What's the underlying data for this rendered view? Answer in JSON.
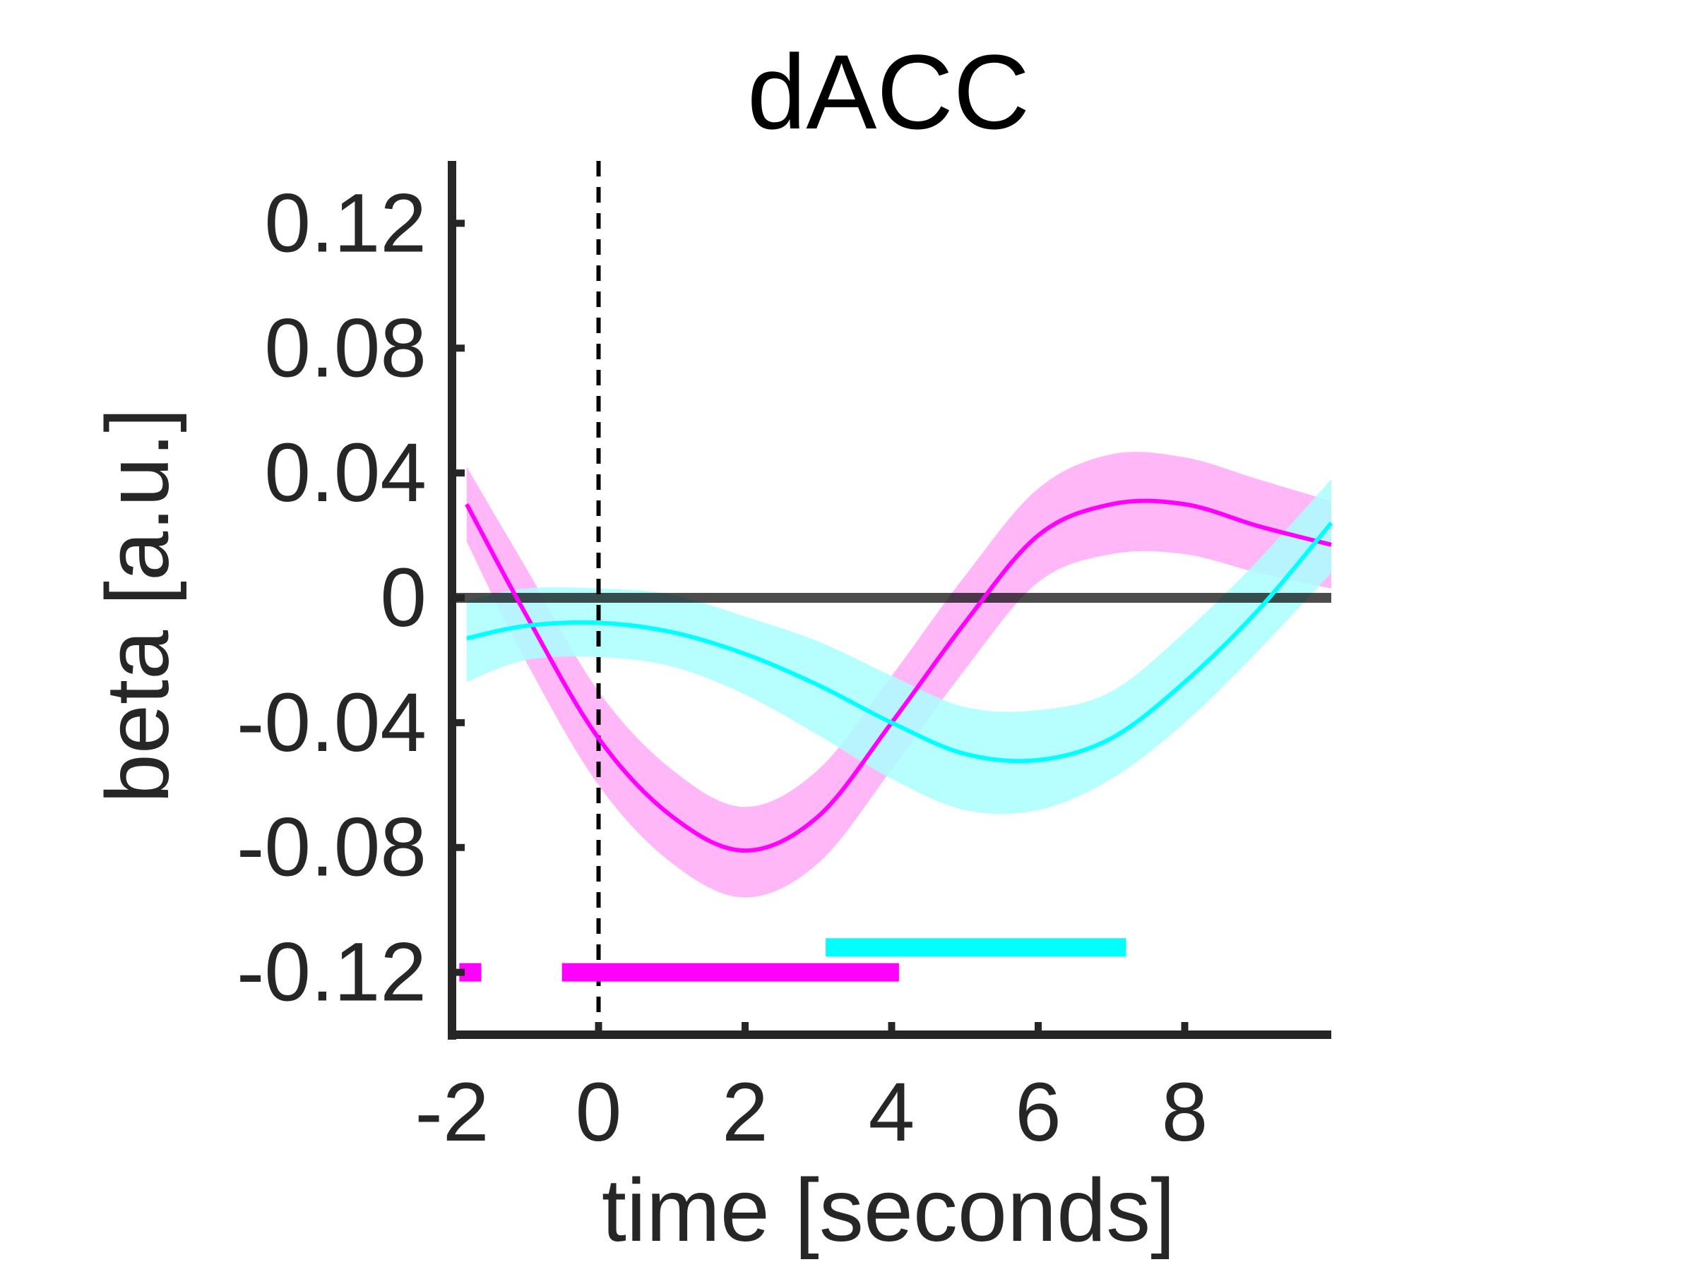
{
  "chart_data": {
    "type": "line",
    "title": "dACC",
    "xlabel": "time [seconds]",
    "ylabel": "beta [a.u.]",
    "xlim": [
      -2,
      10
    ],
    "ylim": [
      -0.14,
      0.14
    ],
    "xticks": [
      -2,
      0,
      2,
      4,
      6,
      8
    ],
    "xtick_labels": [
      "-2",
      "0",
      "2",
      "4",
      "6",
      "8"
    ],
    "yticks": [
      0.12,
      0.08,
      0.04,
      0,
      -0.04,
      -0.08,
      -0.12
    ],
    "ytick_labels": [
      "0.12",
      "0.08",
      "0.04",
      "0",
      "-0.04",
      "-0.08",
      "-0.12"
    ],
    "grid": false,
    "legend": false,
    "zero_line": {
      "y": 0,
      "color": "#000000"
    },
    "event_marker": {
      "x": 0,
      "style": "dashed",
      "color": "#000000"
    },
    "x": [
      -1.8,
      -1,
      0,
      1,
      2,
      3,
      4,
      5,
      6,
      7,
      8,
      9,
      10
    ],
    "series": [
      {
        "color": "#FF00FF",
        "band_color": "#FFAAF7",
        "mean": [
          0.03,
          -0.005,
          -0.045,
          -0.07,
          -0.081,
          -0.07,
          -0.04,
          -0.008,
          0.02,
          0.03,
          0.03,
          0.023,
          0.017
        ],
        "lower": [
          0.018,
          -0.02,
          -0.06,
          -0.085,
          -0.096,
          -0.085,
          -0.055,
          -0.023,
          0.005,
          0.014,
          0.014,
          0.008,
          0.003
        ],
        "upper": [
          0.042,
          0.01,
          -0.03,
          -0.055,
          -0.067,
          -0.055,
          -0.025,
          0.007,
          0.035,
          0.046,
          0.045,
          0.038,
          0.031
        ],
        "significance": [
          [
            -1.9,
            -1.6
          ],
          [
            -0.5,
            4.1
          ]
        ]
      },
      {
        "color": "#00FFFF",
        "band_color": "#AAFFFF",
        "mean": [
          -0.013,
          -0.009,
          -0.008,
          -0.011,
          -0.018,
          -0.028,
          -0.04,
          -0.05,
          -0.052,
          -0.045,
          -0.027,
          -0.004,
          0.024
        ],
        "lower": [
          -0.027,
          -0.02,
          -0.019,
          -0.022,
          -0.031,
          -0.044,
          -0.058,
          -0.068,
          -0.068,
          -0.058,
          -0.04,
          -0.017,
          0.008
        ],
        "upper": [
          -0.001,
          0.003,
          0.003,
          0.001,
          -0.006,
          -0.014,
          -0.025,
          -0.035,
          -0.036,
          -0.03,
          -0.011,
          0.012,
          0.038
        ],
        "significance": [
          [
            3.1,
            7.2
          ]
        ]
      }
    ]
  }
}
